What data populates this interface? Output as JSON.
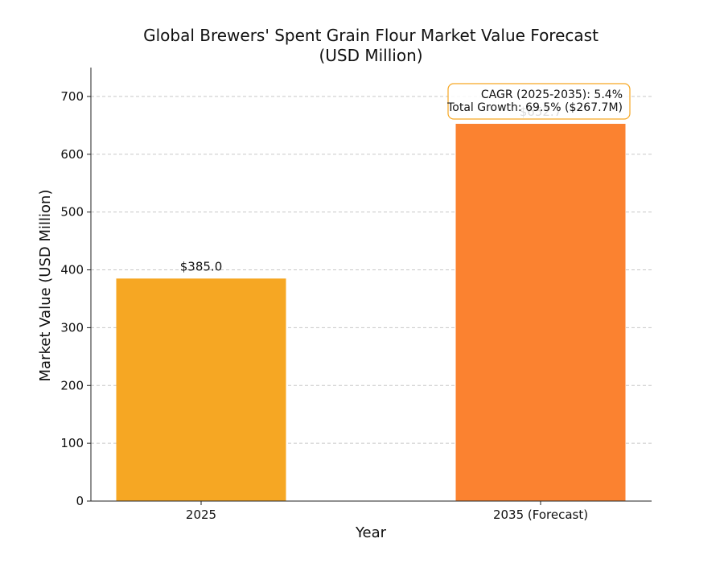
{
  "chart_data": {
    "type": "bar",
    "title": "Global Brewers' Spent Grain Flour Market Value Forecast",
    "subtitle": "(USD Million)",
    "xlabel": "Year",
    "ylabel": "Market Value (USD Million)",
    "categories": [
      "2025",
      "2035 (Forecast)"
    ],
    "values": [
      385.0,
      652.7
    ],
    "data_labels": [
      "$385.0",
      "$652.7"
    ],
    "colors": [
      "#F6A723",
      "#FB8230"
    ],
    "ylim": [
      0,
      750
    ],
    "yticks": [
      0,
      100,
      200,
      300,
      400,
      500,
      600,
      700
    ],
    "grid": true,
    "annotation": {
      "line1": "CAGR (2025-2035): 5.4%",
      "line2": "Total Growth: 69.5% ($267.7M)",
      "border_color": "#F6A723"
    }
  }
}
